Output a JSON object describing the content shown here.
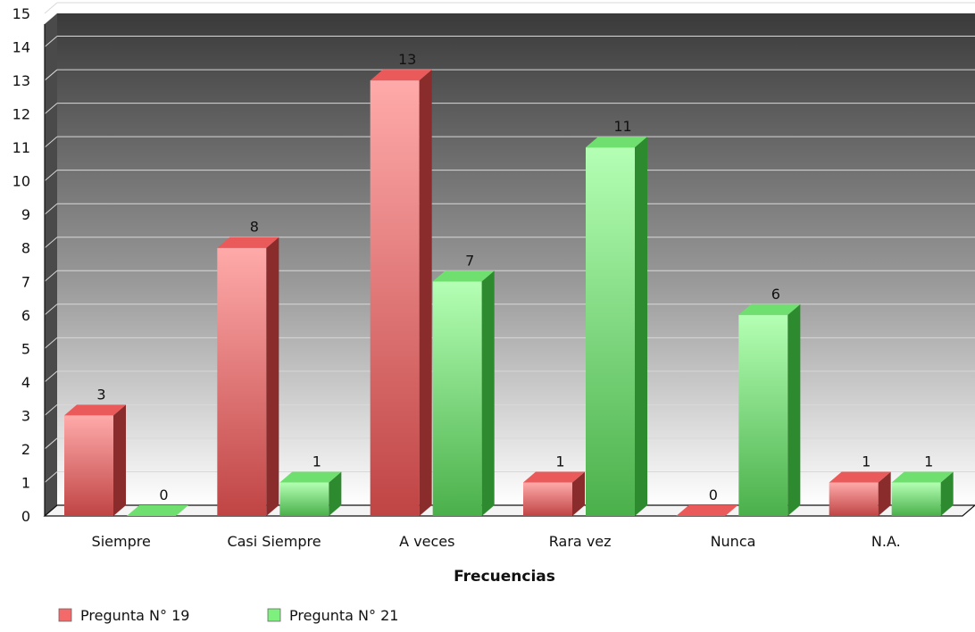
{
  "chart_data": {
    "type": "bar",
    "categories": [
      "Siempre",
      "Casi Siempre",
      "A veces",
      "Rara vez",
      "Nunca",
      "N.A."
    ],
    "series": [
      {
        "name": "Pregunta N° 19",
        "values": [
          3,
          8,
          13,
          1,
          0,
          1
        ]
      },
      {
        "name": "Pregunta N° 21",
        "values": [
          0,
          1,
          7,
          11,
          6,
          1
        ]
      }
    ],
    "title": "",
    "xlabel": "Frecuencias",
    "ylabel": "",
    "ylim": [
      0,
      15
    ],
    "yticks": [
      0,
      1,
      2,
      3,
      4,
      5,
      6,
      7,
      8,
      9,
      10,
      11,
      12,
      13,
      14,
      15
    ],
    "grid": true,
    "three_d": true,
    "legend_position": "bottom-left",
    "colors": {
      "series_0": {
        "front_top": "#ffaaaa",
        "front_bottom": "#c04444",
        "side": "#8b2c2c",
        "top": "#ea5a5a"
      },
      "series_1": {
        "front_top": "#b4ffb4",
        "front_bottom": "#4ab04a",
        "side": "#2e8a2e",
        "top": "#6fe06f"
      },
      "plot_bg_top": "#3c3c3c",
      "plot_bg_bottom": "#ffffff"
    }
  }
}
